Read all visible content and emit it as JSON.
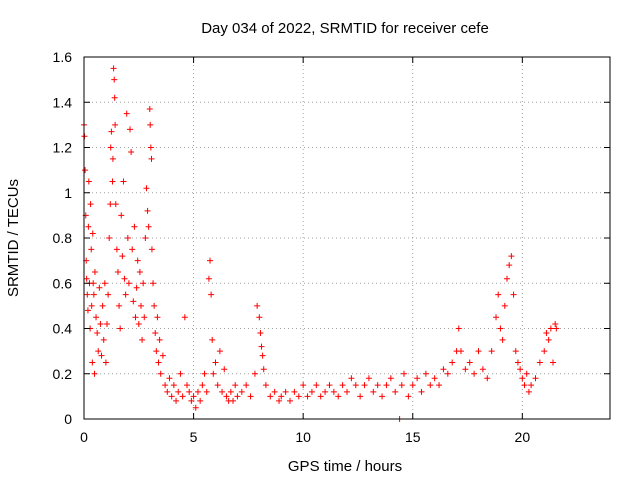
{
  "chart_data": {
    "type": "scatter",
    "title": "Day 034 of 2022, SRMTID for receiver cefe",
    "xlabel": "GPS time / hours",
    "ylabel": "SRMTID / TECUs",
    "xlim": [
      0,
      24
    ],
    "ylim": [
      0,
      1.6
    ],
    "xticks": [
      0,
      5,
      10,
      15,
      20
    ],
    "xtick_labels": [
      "0",
      "5",
      "10",
      "15",
      "20"
    ],
    "yticks": [
      0,
      0.2,
      0.4,
      0.6,
      0.8,
      1,
      1.2,
      1.4,
      1.6
    ],
    "ytick_labels": [
      "0",
      "0.2",
      "0.4",
      "0.6",
      "0.8",
      "1",
      "1.2",
      "1.4",
      "1.6"
    ],
    "grid": true,
    "marker": "+",
    "series": [
      {
        "name": "SRMTID",
        "color": "#ff0000",
        "points": [
          [
            0.0,
            1.3
          ],
          [
            0.02,
            1.25
          ],
          [
            0.05,
            1.1
          ],
          [
            0.08,
            0.9
          ],
          [
            0.1,
            0.7
          ],
          [
            0.12,
            0.62
          ],
          [
            0.15,
            0.55
          ],
          [
            0.18,
            0.48
          ],
          [
            0.2,
            0.85
          ],
          [
            0.22,
            1.05
          ],
          [
            0.25,
            0.6
          ],
          [
            0.28,
            0.4
          ],
          [
            0.3,
            0.95
          ],
          [
            0.33,
            0.75
          ],
          [
            0.35,
            0.5
          ],
          [
            0.38,
            0.25
          ],
          [
            0.4,
            0.82
          ],
          [
            0.42,
            0.6
          ],
          [
            0.45,
            0.55
          ],
          [
            0.48,
            0.2
          ],
          [
            0.5,
            0.65
          ],
          [
            0.55,
            0.45
          ],
          [
            0.6,
            0.38
          ],
          [
            0.65,
            0.3
          ],
          [
            0.7,
            0.58
          ],
          [
            0.75,
            0.42
          ],
          [
            0.8,
            0.28
          ],
          [
            0.85,
            0.5
          ],
          [
            0.9,
            0.35
          ],
          [
            0.95,
            0.6
          ],
          [
            1.0,
            0.25
          ],
          [
            1.05,
            0.42
          ],
          [
            1.1,
            0.55
          ],
          [
            1.15,
            0.8
          ],
          [
            1.2,
            0.95
          ],
          [
            1.22,
            1.2
          ],
          [
            1.25,
            1.27
          ],
          [
            1.3,
            1.05
          ],
          [
            1.32,
            1.15
          ],
          [
            1.35,
            1.55
          ],
          [
            1.38,
            1.5
          ],
          [
            1.4,
            1.42
          ],
          [
            1.42,
            1.3
          ],
          [
            1.45,
            0.95
          ],
          [
            1.5,
            0.75
          ],
          [
            1.55,
            0.65
          ],
          [
            1.6,
            0.5
          ],
          [
            1.65,
            0.4
          ],
          [
            1.7,
            0.9
          ],
          [
            1.75,
            0.72
          ],
          [
            1.8,
            1.05
          ],
          [
            1.85,
            0.62
          ],
          [
            1.9,
            0.55
          ],
          [
            1.95,
            1.35
          ],
          [
            2.0,
            0.8
          ],
          [
            2.05,
            0.6
          ],
          [
            2.1,
            1.28
          ],
          [
            2.15,
            1.18
          ],
          [
            2.2,
            0.75
          ],
          [
            2.25,
            0.52
          ],
          [
            2.3,
            0.85
          ],
          [
            2.35,
            0.45
          ],
          [
            2.4,
            0.58
          ],
          [
            2.45,
            0.7
          ],
          [
            2.5,
            0.42
          ],
          [
            2.55,
            0.65
          ],
          [
            2.6,
            0.5
          ],
          [
            2.65,
            0.35
          ],
          [
            2.7,
            0.6
          ],
          [
            2.75,
            0.45
          ],
          [
            2.8,
            0.8
          ],
          [
            2.85,
            1.02
          ],
          [
            2.9,
            0.92
          ],
          [
            2.95,
            0.85
          ],
          [
            3.0,
            1.37
          ],
          [
            3.02,
            1.3
          ],
          [
            3.05,
            1.2
          ],
          [
            3.08,
            1.15
          ],
          [
            3.1,
            0.75
          ],
          [
            3.15,
            0.6
          ],
          [
            3.2,
            0.5
          ],
          [
            3.25,
            0.38
          ],
          [
            3.3,
            0.3
          ],
          [
            3.35,
            0.45
          ],
          [
            3.4,
            0.25
          ],
          [
            3.45,
            0.35
          ],
          [
            3.5,
            0.2
          ],
          [
            3.6,
            0.28
          ],
          [
            3.7,
            0.15
          ],
          [
            3.8,
            0.12
          ],
          [
            3.9,
            0.18
          ],
          [
            4.0,
            0.1
          ],
          [
            4.1,
            0.15
          ],
          [
            4.2,
            0.08
          ],
          [
            4.3,
            0.12
          ],
          [
            4.4,
            0.2
          ],
          [
            4.5,
            0.1
          ],
          [
            4.6,
            0.45
          ],
          [
            4.7,
            0.15
          ],
          [
            4.8,
            0.12
          ],
          [
            4.9,
            0.08
          ],
          [
            5.0,
            0.1
          ],
          [
            5.1,
            0.05
          ],
          [
            5.2,
            0.12
          ],
          [
            5.3,
            0.08
          ],
          [
            5.4,
            0.15
          ],
          [
            5.5,
            0.2
          ],
          [
            5.6,
            0.12
          ],
          [
            5.7,
            0.62
          ],
          [
            5.75,
            0.7
          ],
          [
            5.8,
            0.55
          ],
          [
            5.85,
            0.35
          ],
          [
            5.9,
            0.2
          ],
          [
            6.0,
            0.25
          ],
          [
            6.1,
            0.15
          ],
          [
            6.2,
            0.3
          ],
          [
            6.3,
            0.12
          ],
          [
            6.4,
            0.22
          ],
          [
            6.5,
            0.1
          ],
          [
            6.6,
            0.08
          ],
          [
            6.7,
            0.12
          ],
          [
            6.8,
            0.08
          ],
          [
            6.9,
            0.15
          ],
          [
            7.0,
            0.1
          ],
          [
            7.2,
            0.12
          ],
          [
            7.4,
            0.15
          ],
          [
            7.6,
            0.1
          ],
          [
            7.8,
            0.2
          ],
          [
            7.9,
            0.5
          ],
          [
            8.0,
            0.45
          ],
          [
            8.05,
            0.38
          ],
          [
            8.1,
            0.32
          ],
          [
            8.15,
            0.28
          ],
          [
            8.2,
            0.22
          ],
          [
            8.3,
            0.15
          ],
          [
            8.5,
            0.1
          ],
          [
            8.7,
            0.12
          ],
          [
            8.9,
            0.08
          ],
          [
            9.0,
            0.1
          ],
          [
            9.2,
            0.12
          ],
          [
            9.4,
            0.08
          ],
          [
            9.6,
            0.12
          ],
          [
            9.8,
            0.1
          ],
          [
            10.0,
            0.15
          ],
          [
            10.2,
            0.1
          ],
          [
            10.4,
            0.12
          ],
          [
            10.6,
            0.15
          ],
          [
            10.8,
            0.1
          ],
          [
            11.0,
            0.12
          ],
          [
            11.2,
            0.15
          ],
          [
            11.4,
            0.12
          ],
          [
            11.6,
            0.1
          ],
          [
            11.8,
            0.15
          ],
          [
            12.0,
            0.12
          ],
          [
            12.2,
            0.18
          ],
          [
            12.4,
            0.15
          ],
          [
            12.6,
            0.1
          ],
          [
            12.8,
            0.15
          ],
          [
            13.0,
            0.18
          ],
          [
            13.2,
            0.12
          ],
          [
            13.4,
            0.15
          ],
          [
            13.6,
            0.1
          ],
          [
            13.8,
            0.15
          ],
          [
            14.0,
            0.18
          ],
          [
            14.2,
            0.12
          ],
          [
            14.4,
            0.0
          ],
          [
            14.5,
            0.15
          ],
          [
            14.6,
            0.2
          ],
          [
            14.8,
            0.1
          ],
          [
            15.0,
            0.15
          ],
          [
            15.2,
            0.18
          ],
          [
            15.4,
            0.12
          ],
          [
            15.6,
            0.2
          ],
          [
            15.8,
            0.15
          ],
          [
            16.0,
            0.18
          ],
          [
            16.2,
            0.15
          ],
          [
            16.4,
            0.22
          ],
          [
            16.6,
            0.2
          ],
          [
            16.8,
            0.25
          ],
          [
            17.0,
            0.3
          ],
          [
            17.1,
            0.4
          ],
          [
            17.2,
            0.3
          ],
          [
            17.4,
            0.22
          ],
          [
            17.6,
            0.25
          ],
          [
            17.8,
            0.2
          ],
          [
            18.0,
            0.3
          ],
          [
            18.2,
            0.22
          ],
          [
            18.4,
            0.18
          ],
          [
            18.6,
            0.3
          ],
          [
            18.8,
            0.45
          ],
          [
            18.9,
            0.55
          ],
          [
            19.0,
            0.4
          ],
          [
            19.1,
            0.35
          ],
          [
            19.2,
            0.5
          ],
          [
            19.3,
            0.62
          ],
          [
            19.4,
            0.68
          ],
          [
            19.5,
            0.72
          ],
          [
            19.6,
            0.55
          ],
          [
            19.7,
            0.3
          ],
          [
            19.8,
            0.25
          ],
          [
            19.9,
            0.22
          ],
          [
            20.0,
            0.18
          ],
          [
            20.1,
            0.15
          ],
          [
            20.2,
            0.2
          ],
          [
            20.3,
            0.12
          ],
          [
            20.4,
            0.15
          ],
          [
            20.6,
            0.18
          ],
          [
            20.8,
            0.25
          ],
          [
            21.0,
            0.3
          ],
          [
            21.1,
            0.38
          ],
          [
            21.2,
            0.35
          ],
          [
            21.3,
            0.4
          ],
          [
            21.4,
            0.25
          ],
          [
            21.5,
            0.42
          ],
          [
            21.55,
            0.4
          ]
        ]
      }
    ]
  }
}
